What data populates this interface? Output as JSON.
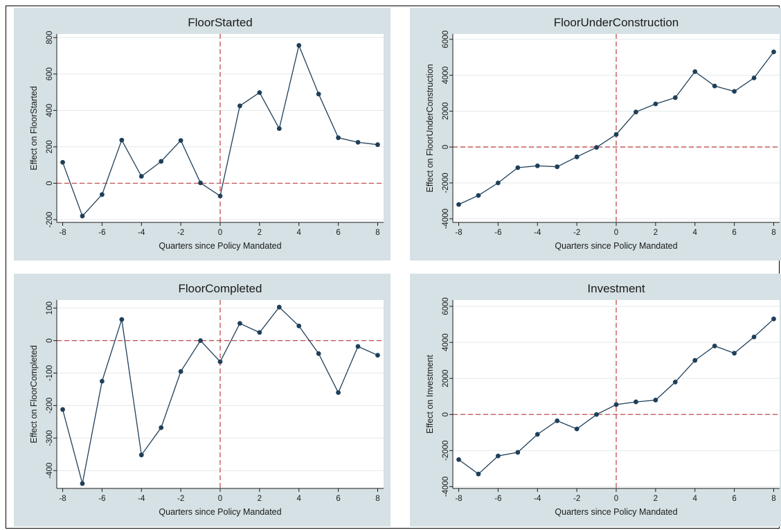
{
  "colors": {
    "panel_background": "#d5e1e4",
    "plot_background": "#ffffff",
    "series_line": "#1f3f59",
    "reference_line": "#c24b4b",
    "grid": "#e3e8ea"
  },
  "chart_data": [
    {
      "type": "line",
      "title": "FloorStarted",
      "xlabel": "Quarters since Policy Mandated",
      "ylabel": "Effect on FloorStarted",
      "x": [
        -8,
        -7,
        -6,
        -5,
        -4,
        -3,
        -2,
        -1,
        0,
        1,
        2,
        3,
        4,
        5,
        6,
        7,
        8
      ],
      "series": [
        {
          "values": [
            115,
            -180,
            -62,
            237,
            38,
            120,
            235,
            2,
            -70,
            425,
            498,
            300,
            757,
            490,
            250,
            225,
            212
          ]
        }
      ],
      "xticks": [
        -8,
        -6,
        -4,
        -2,
        0,
        2,
        4,
        6,
        8
      ],
      "yticks": [
        -200,
        0,
        200,
        400,
        600,
        800
      ],
      "ytick_labels": [
        "-200",
        "0",
        "200",
        "400",
        "600",
        "800"
      ],
      "xlim": [
        -8.3,
        8.3
      ],
      "ylim": [
        -215,
        820
      ],
      "reference_lines": {
        "x": 0,
        "y": 0
      },
      "grid": true,
      "legend": "none"
    },
    {
      "type": "line",
      "title": "FloorUnderConstruction",
      "xlabel": "Quarters since Policy Mandated",
      "ylabel": "Effect on FloorUnderConstruction",
      "x": [
        -8,
        -7,
        -6,
        -5,
        -4,
        -3,
        -2,
        -1,
        0,
        1,
        2,
        3,
        4,
        5,
        6,
        7,
        8
      ],
      "series": [
        {
          "values": [
            -3200,
            -2700,
            -2000,
            -1150,
            -1050,
            -1100,
            -550,
            -20,
            700,
            1950,
            2400,
            2750,
            4200,
            3400,
            3100,
            3850,
            5300
          ]
        }
      ],
      "xticks": [
        -8,
        -6,
        -4,
        -2,
        0,
        2,
        4,
        6,
        8
      ],
      "yticks": [
        -4000,
        -2000,
        0,
        2000,
        4000,
        6000
      ],
      "ytick_labels": [
        "-4000",
        "-2000",
        "0",
        "2000",
        "4000",
        "6000"
      ],
      "xlim": [
        -8.3,
        8.3
      ],
      "ylim": [
        -4200,
        6300
      ],
      "reference_lines": {
        "x": 0,
        "y": 0
      },
      "grid": true,
      "legend": "none"
    },
    {
      "type": "line",
      "title": "FloorCompleted",
      "xlabel": "Quarters since Policy Mandated",
      "ylabel": "Effect on FloorCompleted",
      "x": [
        -8,
        -7,
        -6,
        -5,
        -4,
        -3,
        -2,
        -1,
        0,
        1,
        2,
        3,
        4,
        5,
        6,
        7,
        8
      ],
      "series": [
        {
          "values": [
            -212,
            -440,
            -125,
            65,
            -352,
            -268,
            -95,
            0,
            -65,
            53,
            25,
            103,
            45,
            -40,
            -160,
            -18,
            -45
          ]
        }
      ],
      "xticks": [
        -8,
        -6,
        -4,
        -2,
        0,
        2,
        4,
        6,
        8
      ],
      "yticks": [
        -400,
        -300,
        -200,
        -100,
        0,
        100
      ],
      "ytick_labels": [
        "-400",
        "-300",
        "-200",
        "-100",
        "0",
        "100"
      ],
      "xlim": [
        -8.3,
        8.3
      ],
      "ylim": [
        -455,
        125
      ],
      "reference_lines": {
        "x": 0,
        "y": 0
      },
      "grid": true,
      "legend": "none"
    },
    {
      "type": "line",
      "title": "Investment",
      "xlabel": "Quarters since Policy Mandated",
      "ylabel": "Effect on Investment",
      "x": [
        -8,
        -7,
        -6,
        -5,
        -4,
        -3,
        -2,
        -1,
        0,
        1,
        2,
        3,
        4,
        5,
        6,
        7,
        8
      ],
      "series": [
        {
          "values": [
            -2500,
            -3300,
            -2300,
            -2100,
            -1100,
            -350,
            -800,
            0,
            550,
            700,
            800,
            1800,
            3000,
            3800,
            3400,
            4300,
            5300
          ]
        }
      ],
      "xticks": [
        -8,
        -6,
        -4,
        -2,
        0,
        2,
        4,
        6,
        8
      ],
      "yticks": [
        -4000,
        -2000,
        0,
        2000,
        4000,
        6000
      ],
      "ytick_labels": [
        "-4000",
        "-2000",
        "0",
        "2000",
        "4000",
        "6000"
      ],
      "xlim": [
        -8.3,
        8.3
      ],
      "ylim": [
        -4100,
        6350
      ],
      "reference_lines": {
        "x": 0,
        "y": 0
      },
      "grid": true,
      "legend": "none"
    }
  ]
}
